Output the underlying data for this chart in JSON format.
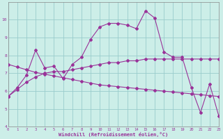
{
  "background_color": "#cceee8",
  "grid_color": "#99cccc",
  "line_color": "#993399",
  "xlabel": "Windchill (Refroidissement éolien,°C)",
  "xlim": [
    0,
    23
  ],
  "ylim": [
    4,
    11
  ],
  "yticks": [
    4,
    5,
    6,
    7,
    8,
    9,
    10
  ],
  "xticks": [
    0,
    1,
    2,
    3,
    4,
    5,
    6,
    7,
    8,
    9,
    10,
    11,
    12,
    13,
    14,
    15,
    16,
    17,
    18,
    19,
    20,
    21,
    22,
    23
  ],
  "line1_x": [
    0,
    1,
    2,
    3,
    4,
    5,
    6,
    7,
    8,
    9,
    10,
    11,
    12,
    13,
    14,
    15,
    16,
    17,
    18,
    19,
    20,
    21,
    22,
    23
  ],
  "line1_y": [
    5.7,
    6.2,
    6.9,
    8.3,
    7.3,
    7.4,
    6.7,
    7.5,
    7.9,
    8.9,
    9.6,
    9.8,
    9.8,
    9.7,
    9.5,
    10.5,
    10.1,
    8.2,
    7.9,
    7.9,
    6.2,
    4.8,
    6.4,
    4.6
  ],
  "line2_x": [
    0,
    1,
    2,
    3,
    4,
    5,
    6,
    7,
    8,
    9,
    10,
    11,
    12,
    13,
    14,
    15,
    16,
    17,
    18,
    19,
    20,
    21,
    22,
    23
  ],
  "line2_y": [
    5.7,
    6.1,
    6.5,
    6.8,
    7.0,
    7.1,
    7.1,
    7.2,
    7.3,
    7.4,
    7.5,
    7.6,
    7.6,
    7.7,
    7.7,
    7.8,
    7.8,
    7.8,
    7.8,
    7.8,
    7.8,
    7.8,
    7.8,
    7.8
  ],
  "line3_x": [
    0,
    1,
    2,
    3,
    4,
    5,
    6,
    7,
    8,
    9,
    10,
    11,
    12,
    13,
    14,
    15,
    16,
    17,
    18,
    19,
    20,
    21,
    22,
    23
  ],
  "line3_y": [
    7.5,
    7.35,
    7.2,
    7.05,
    6.95,
    6.85,
    6.75,
    6.65,
    6.55,
    6.45,
    6.35,
    6.3,
    6.25,
    6.2,
    6.15,
    6.1,
    6.05,
    6.0,
    5.95,
    5.9,
    5.85,
    5.8,
    5.75,
    5.7
  ]
}
